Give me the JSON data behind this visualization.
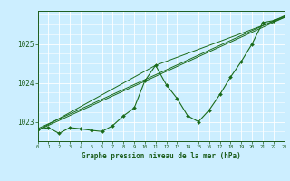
{
  "x_data": [
    0,
    1,
    2,
    3,
    4,
    5,
    6,
    7,
    8,
    9,
    10,
    11,
    12,
    13,
    14,
    15,
    16,
    17,
    18,
    19,
    20,
    21,
    22,
    23
  ],
  "y_main": [
    1022.8,
    1022.85,
    1022.7,
    1022.85,
    1022.82,
    1022.78,
    1022.75,
    1022.9,
    1023.15,
    1023.35,
    1024.05,
    1024.45,
    1023.95,
    1023.6,
    1023.15,
    1023.0,
    1023.3,
    1023.7,
    1024.15,
    1024.55,
    1025.0,
    1025.55,
    1025.6,
    1025.7
  ],
  "trend1_x": [
    0,
    23
  ],
  "trend1_y": [
    1022.78,
    1025.68
  ],
  "trend2_x": [
    0,
    23
  ],
  "trend2_y": [
    1022.82,
    1025.72
  ],
  "trend3_x": [
    0,
    11,
    23
  ],
  "trend3_y": [
    1022.78,
    1024.45,
    1025.68
  ],
  "line_color": "#1a6b1a",
  "bg_color": "#cceeff",
  "grid_color": "#ffffff",
  "text_color": "#1a5c1a",
  "xlabel": "Graphe pression niveau de la mer (hPa)",
  "yticks": [
    1023,
    1024,
    1025
  ],
  "ylim": [
    1022.5,
    1025.85
  ],
  "xlim": [
    0,
    23
  ]
}
